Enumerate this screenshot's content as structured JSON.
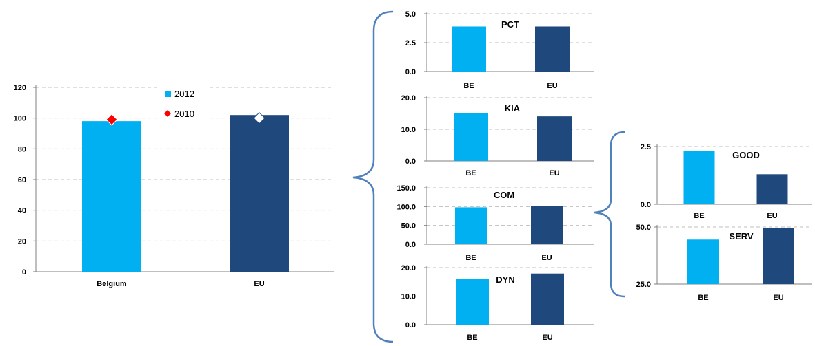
{
  "colors": {
    "be": "#00B0F0",
    "eu": "#1F497D",
    "marker_2010": "#FF0000",
    "grid": "#BFBFBF",
    "brace": "#4F81BD"
  },
  "chart_data": [
    {
      "id": "main",
      "type": "bar",
      "categories": [
        "Belgium",
        "EU"
      ],
      "series": [
        {
          "name": "2012",
          "values": [
            98,
            102
          ]
        },
        {
          "name": "2010",
          "values": [
            99,
            100
          ]
        }
      ],
      "ylim": [
        0,
        120
      ],
      "yticks": [
        "0",
        "20",
        "40",
        "60",
        "80",
        "100",
        "120"
      ],
      "grid": true,
      "legend": "top-left"
    },
    {
      "id": "pct",
      "type": "bar",
      "title": "PCT",
      "categories": [
        "BE",
        "EU"
      ],
      "values": [
        3.9,
        3.9
      ],
      "ylim": [
        0,
        5
      ],
      "yticks": [
        "0.0",
        "2.5",
        "5.0"
      ],
      "grid": true
    },
    {
      "id": "kia",
      "type": "bar",
      "title": "KIA",
      "categories": [
        "BE",
        "EU"
      ],
      "values": [
        15.2,
        14.1
      ],
      "ylim": [
        0,
        20
      ],
      "yticks": [
        "0.0",
        "10.0",
        "20.0"
      ],
      "grid": true
    },
    {
      "id": "com",
      "type": "bar",
      "title": "COM",
      "categories": [
        "BE",
        "EU"
      ],
      "values": [
        98,
        101
      ],
      "ylim": [
        0,
        150
      ],
      "yticks": [
        "0.0",
        "50.0",
        "100.0",
        "150.0"
      ],
      "grid": true
    },
    {
      "id": "dyn",
      "type": "bar",
      "title": "DYN",
      "categories": [
        "BE",
        "EU"
      ],
      "values": [
        15.9,
        17.9
      ],
      "ylim": [
        0,
        20
      ],
      "yticks": [
        "0.0",
        "10.0",
        "20.0"
      ],
      "grid": true
    },
    {
      "id": "good",
      "type": "bar",
      "title": "GOOD",
      "categories": [
        "BE",
        "EU"
      ],
      "values": [
        2.3,
        1.3
      ],
      "ylim": [
        0,
        2.5
      ],
      "yticks": [
        "0.0",
        "2.5"
      ],
      "grid": true
    },
    {
      "id": "serv",
      "type": "bar",
      "title": "SERV",
      "categories": [
        "BE",
        "EU"
      ],
      "values": [
        44.5,
        49.5
      ],
      "ylim": [
        25,
        50
      ],
      "yticks": [
        "25.0",
        "50.0"
      ],
      "grid": true
    }
  ]
}
